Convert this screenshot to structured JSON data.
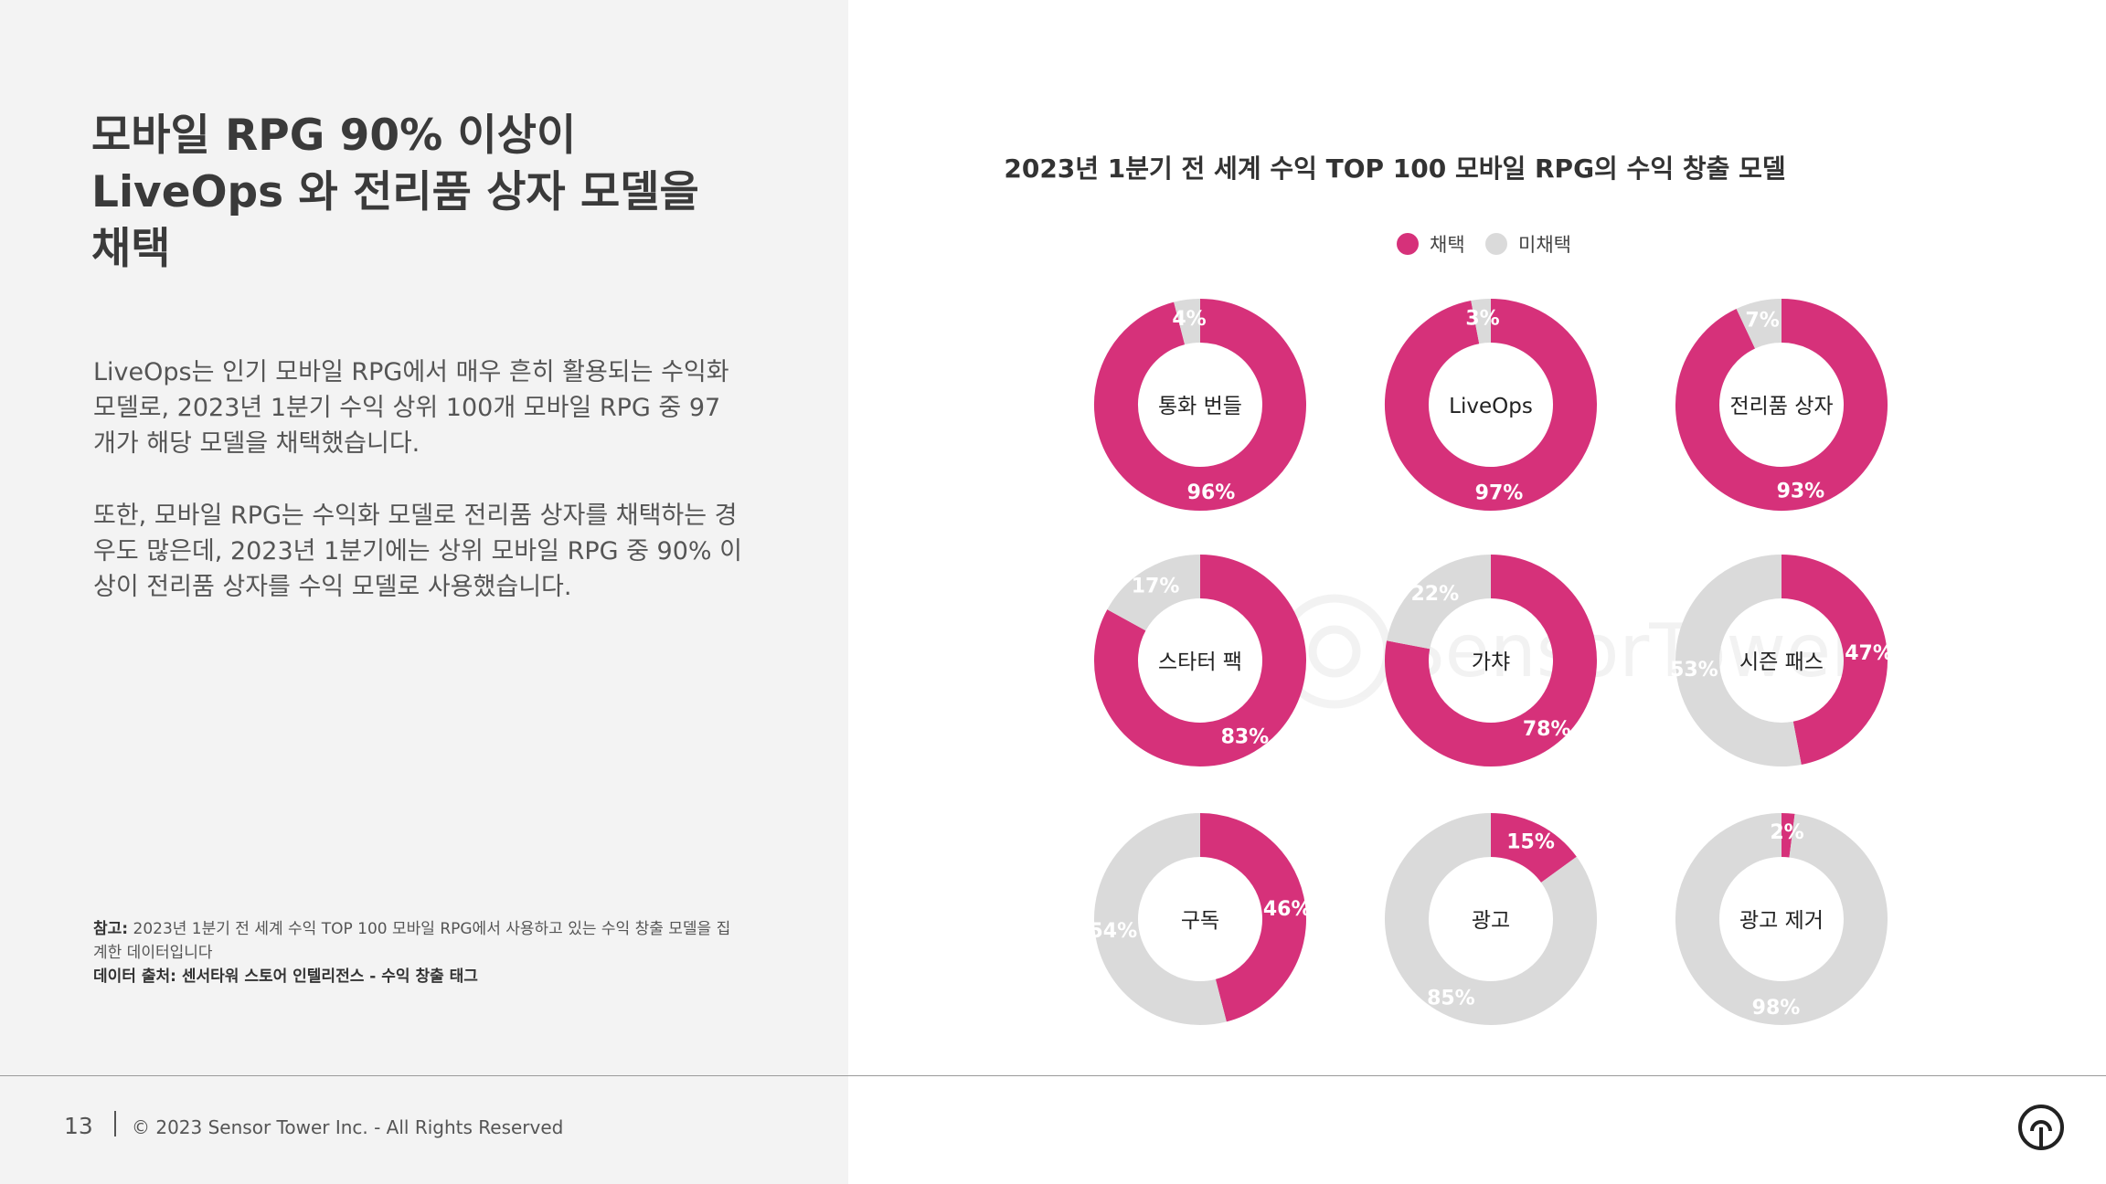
{
  "headline": "모바일 RPG 90% 이상이 LiveOps 와 전리품 상자 모델을 채택",
  "body": {
    "paragraph1": "LiveOps는 인기 모바일 RPG에서 매우 흔히 활용되는 수익화 모델로, 2023년 1분기 수익 상위 100개 모바일 RPG 중 97개가 해당 모델을 채택했습니다.",
    "paragraph2": "또한, 모바일 RPG는 수익화 모델로 전리품 상자를 채택하는 경우도 많은데, 2023년 1분기에는 상위 모바일 RPG 중 90% 이상이 전리품 상자를 수익 모델로 사용했습니다."
  },
  "notes": {
    "note_label": "참고:",
    "note_text": "2023년 1분기 전 세계 수익 TOP 100 모바일 RPG에서 사용하고 있는 수익 창출 모델을 집계한 데이터입니다",
    "source": "데이터 출처: 센서타워 스토어 인텔리전스 - 수익 창출 태그"
  },
  "footer": {
    "page_number": "13",
    "copyright": "© 2023 Sensor Tower Inc. - All Rights Reserved"
  },
  "watermark": "SensorTower",
  "logo_icon": "sensor-tower-logo-icon",
  "colors": {
    "adopted": "#d6317a",
    "not_adopted": "#dadada",
    "left_bg": "#f3f3f3"
  },
  "chart_data": {
    "type": "pie",
    "subtype": "donut-grid",
    "title": "2023년 1분기 전 세계 수익 TOP 100 모바일 RPG의 수익 창출 모델",
    "legend": [
      "채택",
      "미채택"
    ],
    "legend_position": "top-center",
    "series": [
      {
        "name": "통화 번들",
        "adopted": 96,
        "not_adopted": 4,
        "adopted_label": "96%",
        "not_adopted_label": "4%"
      },
      {
        "name": "LiveOps",
        "adopted": 97,
        "not_adopted": 3,
        "adopted_label": "97%",
        "not_adopted_label": "3%"
      },
      {
        "name": "전리품 상자",
        "adopted": 93,
        "not_adopted": 7,
        "adopted_label": "93%",
        "not_adopted_label": "7%"
      },
      {
        "name": "스타터 팩",
        "adopted": 83,
        "not_adopted": 17,
        "adopted_label": "83%",
        "not_adopted_label": "17%"
      },
      {
        "name": "가챠",
        "adopted": 78,
        "not_adopted": 22,
        "adopted_label": "78%",
        "not_adopted_label": "22%"
      },
      {
        "name": "시즌 패스",
        "adopted": 47,
        "not_adopted": 53,
        "adopted_label": "47%",
        "not_adopted_label": "53%"
      },
      {
        "name": "구독",
        "adopted": 46,
        "not_adopted": 54,
        "adopted_label": "46%",
        "not_adopted_label": "54%"
      },
      {
        "name": "광고",
        "adopted": 15,
        "not_adopted": 85,
        "adopted_label": "15%",
        "not_adopted_label": "85%"
      },
      {
        "name": "광고 제거",
        "adopted": 2,
        "not_adopted": 98,
        "adopted_label": "2%",
        "not_adopted_label": "98%"
      }
    ]
  }
}
